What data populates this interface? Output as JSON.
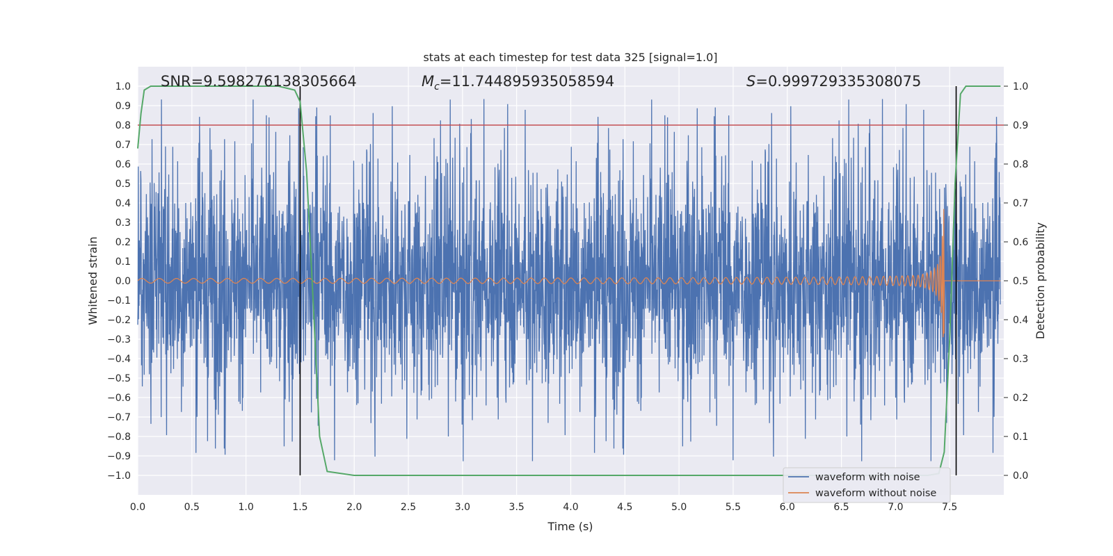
{
  "chart_data": {
    "type": "line",
    "title": "stats at each timestep for test data 325 [signal=1.0]",
    "xlabel": "Time (s)",
    "ylabel": "Whitened strain",
    "y2label": "Detection probability",
    "xlim": [
      0.0,
      8.0
    ],
    "ylim": [
      -1.1,
      1.1
    ],
    "y2lim": [
      -0.05,
      1.05
    ],
    "xticks": [
      "0.0",
      "0.5",
      "1.0",
      "1.5",
      "2.0",
      "2.5",
      "3.0",
      "3.5",
      "4.0",
      "4.5",
      "5.0",
      "5.5",
      "6.0",
      "6.5",
      "7.0",
      "7.5"
    ],
    "yticks": [
      "1.0",
      "0.9",
      "0.8",
      "0.7",
      "0.6",
      "0.5",
      "0.4",
      "0.3",
      "0.2",
      "0.1",
      "0.0",
      "−0.1",
      "−0.2",
      "−0.3",
      "−0.4",
      "−0.5",
      "−0.6",
      "−0.7",
      "−0.8",
      "−0.9",
      "−1.0"
    ],
    "y2ticks": [
      "1.0",
      "0.9",
      "0.8",
      "0.7",
      "0.6",
      "0.5",
      "0.4",
      "0.3",
      "0.2",
      "0.1",
      "0.0"
    ],
    "annotations": {
      "snr": "SNR=9.598276138305664",
      "mc_symbol": "M",
      "mc_sub": "c",
      "mc_value": "=11.744895935058594",
      "s_symbol": "S",
      "s_value": "=0.999729335308075"
    },
    "threshold_y2": 0.9,
    "vlines_x": [
      1.5,
      7.56
    ],
    "noisy_series": {
      "name": "waveform with noise",
      "color": "#4c72b0",
      "core_amplitude": 0.45,
      "max_abs": 1.0
    },
    "clean_series": {
      "name": "waveform without noise",
      "color": "#dd8452",
      "t_merger": 7.45,
      "peak_pos": 0.39,
      "peak_neg": -0.29,
      "early_amplitude": 0.012
    },
    "probability_series": {
      "name": "Detection probability",
      "color": "#55a868",
      "x": [
        0.0,
        0.03,
        0.06,
        0.12,
        0.2,
        0.5,
        1.0,
        1.3,
        1.45,
        1.5,
        1.56,
        1.62,
        1.68,
        1.75,
        2.0,
        3.0,
        4.0,
        5.0,
        6.0,
        7.0,
        7.3,
        7.4,
        7.45,
        7.5,
        7.55,
        7.6,
        7.65,
        7.7,
        7.97
      ],
      "y": [
        0.84,
        0.93,
        0.99,
        1.0,
        1.0,
        1.0,
        1.0,
        1.0,
        0.99,
        0.96,
        0.78,
        0.45,
        0.1,
        0.01,
        0.0,
        0.0,
        0.0,
        0.0,
        0.0,
        0.0,
        0.0,
        0.005,
        0.06,
        0.35,
        0.75,
        0.98,
        1.0,
        1.0,
        1.0
      ]
    },
    "legend": {
      "position": "lower right",
      "entries": [
        "waveform with noise",
        "waveform without noise"
      ]
    },
    "colors": {
      "threshold": "#c44e52",
      "vline": "#000000",
      "background": "#eaeaf2",
      "grid": "#ffffff"
    }
  }
}
